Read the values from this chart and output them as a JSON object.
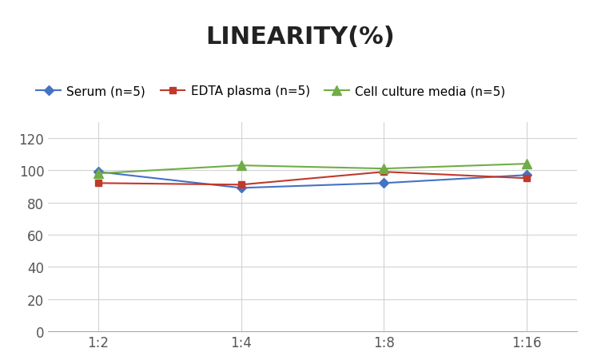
{
  "title": "LINEARITY(%)",
  "x_labels": [
    "1:2",
    "1:4",
    "1:8",
    "1:16"
  ],
  "x_positions": [
    0,
    1,
    2,
    3
  ],
  "series": [
    {
      "label": "Serum (n=5)",
      "values": [
        99,
        89,
        92,
        97
      ],
      "color": "#4472C4",
      "marker": "D",
      "marker_size": 6,
      "linewidth": 1.5
    },
    {
      "label": "EDTA plasma (n=5)",
      "values": [
        92,
        91,
        99,
        95
      ],
      "color": "#C0392B",
      "marker": "s",
      "marker_size": 6,
      "linewidth": 1.5
    },
    {
      "label": "Cell culture media (n=5)",
      "values": [
        98,
        103,
        101,
        104
      ],
      "color": "#70AD47",
      "marker": "^",
      "marker_size": 8,
      "linewidth": 1.5
    }
  ],
  "ylim": [
    0,
    130
  ],
  "yticks": [
    0,
    20,
    40,
    60,
    80,
    100,
    120
  ],
  "background_color": "#ffffff",
  "grid_color": "#d3d3d3",
  "title_fontsize": 22,
  "legend_fontsize": 11,
  "tick_fontsize": 12
}
